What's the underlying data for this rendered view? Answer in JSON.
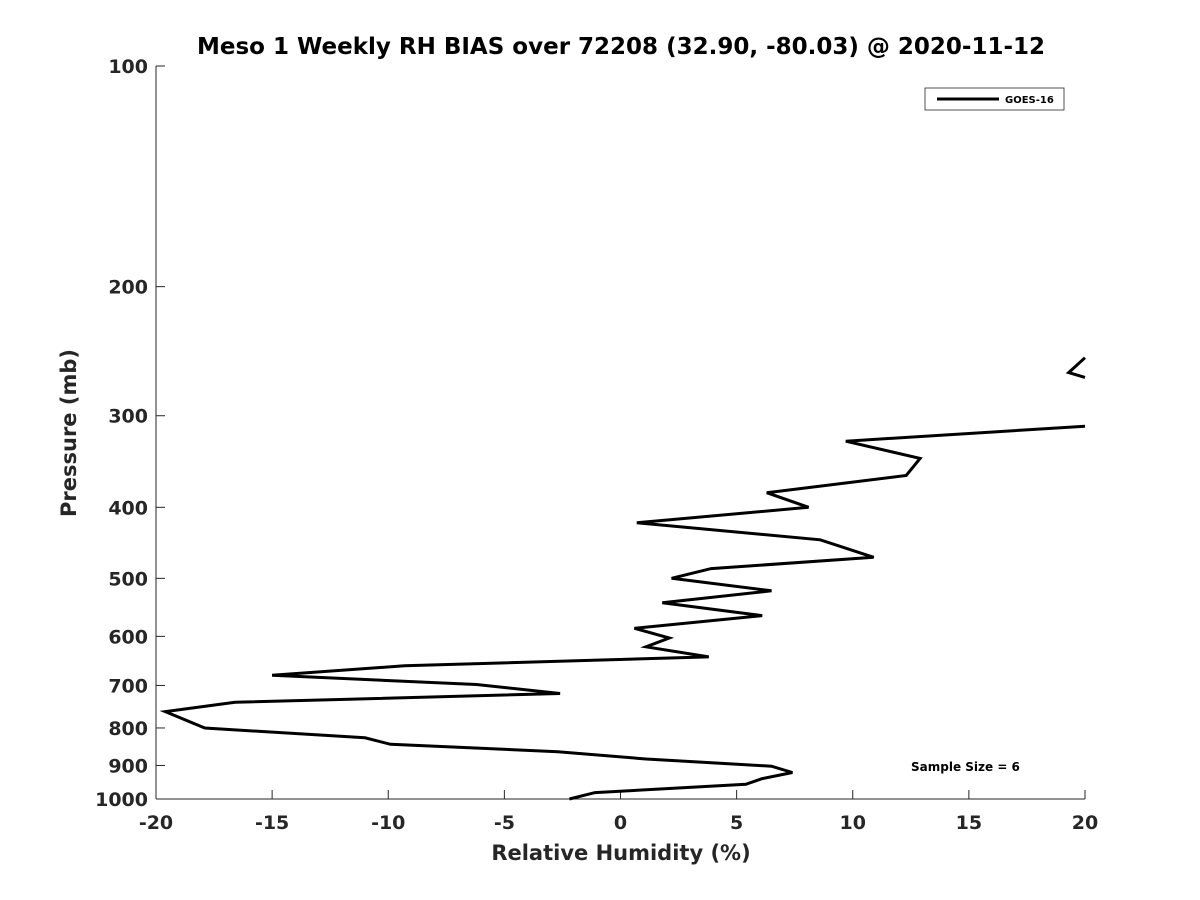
{
  "chart_data": {
    "type": "line",
    "title": "Meso 1 Weekly RH BIAS over 72208 (32.90, -80.03) @ 2020-11-12",
    "xlabel": "Relative Humidity (%)",
    "ylabel": "Pressure (mb)",
    "xlim": [
      -20,
      20
    ],
    "ylim": [
      100,
      1000
    ],
    "y_scale": "log",
    "y_reversed": true,
    "x_ticks": [
      "-20",
      "-15",
      "-10",
      "-5",
      "0",
      "5",
      "10",
      "15",
      "20"
    ],
    "x_tick_values": [
      -20,
      -15,
      -10,
      -5,
      0,
      5,
      10,
      15,
      20
    ],
    "y_ticks": [
      "100",
      "200",
      "300",
      "400",
      "500",
      "600",
      "700",
      "800",
      "900",
      "1000"
    ],
    "y_tick_values": [
      100,
      200,
      300,
      400,
      500,
      600,
      700,
      800,
      900,
      1000
    ],
    "legend_position": "top-right",
    "annotation": "Sample Size = 6",
    "series": [
      {
        "name": "GOES-16",
        "color": "#000000",
        "segments": [
          [
            {
              "x": 20.0,
              "y": 250
            },
            {
              "x": 19.3,
              "y": 262
            },
            {
              "x": 20.0,
              "y": 266
            }
          ],
          [
            {
              "x": 20.0,
              "y": 310
            },
            {
              "x": 9.7,
              "y": 325
            },
            {
              "x": 12.9,
              "y": 343
            },
            {
              "x": 12.3,
              "y": 362
            },
            {
              "x": 6.3,
              "y": 382
            },
            {
              "x": 8.1,
              "y": 400
            },
            {
              "x": 0.7,
              "y": 420
            },
            {
              "x": 8.6,
              "y": 443
            },
            {
              "x": 10.9,
              "y": 468
            },
            {
              "x": 3.9,
              "y": 485
            },
            {
              "x": 2.2,
              "y": 500
            },
            {
              "x": 6.5,
              "y": 520
            },
            {
              "x": 1.8,
              "y": 540
            },
            {
              "x": 6.1,
              "y": 562
            },
            {
              "x": 0.6,
              "y": 585
            },
            {
              "x": 2.1,
              "y": 603
            },
            {
              "x": 1.1,
              "y": 620
            },
            {
              "x": 3.8,
              "y": 640
            },
            {
              "x": -9.3,
              "y": 658
            },
            {
              "x": -15.0,
              "y": 678
            },
            {
              "x": -6.2,
              "y": 698
            },
            {
              "x": -2.6,
              "y": 718
            },
            {
              "x": -16.6,
              "y": 738
            },
            {
              "x": -19.6,
              "y": 760
            },
            {
              "x": -17.9,
              "y": 800
            },
            {
              "x": -11.0,
              "y": 825
            },
            {
              "x": -9.9,
              "y": 842
            },
            {
              "x": -2.7,
              "y": 862
            },
            {
              "x": 1.1,
              "y": 882
            },
            {
              "x": 6.5,
              "y": 902
            },
            {
              "x": 7.4,
              "y": 920
            },
            {
              "x": 6.1,
              "y": 938
            },
            {
              "x": 5.4,
              "y": 955
            },
            {
              "x": -1.1,
              "y": 980
            },
            {
              "x": -2.2,
              "y": 1000
            }
          ]
        ]
      }
    ]
  }
}
